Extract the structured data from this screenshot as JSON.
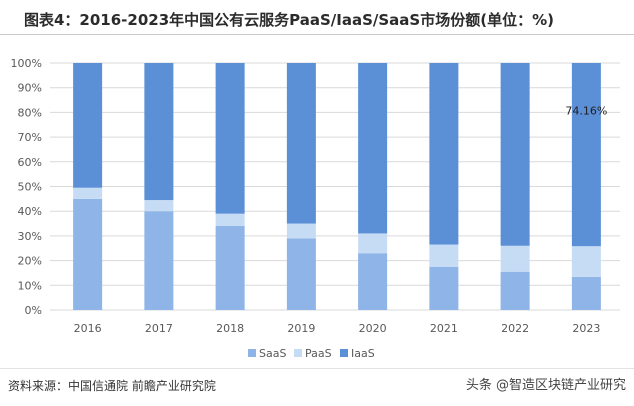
{
  "header": {
    "title": "图表4：2016-2023年中国公有云服务PaaS/IaaS/SaaS市场份额(单位：%)"
  },
  "footer": {
    "source": "资料来源：中国信通院 前瞻产业研究院",
    "watermark": "头条 @智造区块链产业研究"
  },
  "colors": {
    "SaaS": "#8eb4e8",
    "PaaS": "#c6dcf5",
    "IaaS": "#5b8fd6",
    "grid": "#d9d9d9",
    "tick_text": "#595959"
  },
  "chart_data": {
    "type": "bar",
    "stacked": true,
    "categories": [
      "2016",
      "2017",
      "2018",
      "2019",
      "2020",
      "2021",
      "2022",
      "2023"
    ],
    "series": [
      {
        "name": "SaaS",
        "values": [
          45,
          40,
          34,
          29,
          23,
          17.5,
          15.5,
          13.4
        ]
      },
      {
        "name": "PaaS",
        "values": [
          4.5,
          4.5,
          5,
          6,
          8,
          9,
          10.5,
          12.44
        ]
      },
      {
        "name": "IaaS",
        "values": [
          50.5,
          55.5,
          61,
          65,
          69,
          73.5,
          74,
          74.16
        ]
      }
    ],
    "ylim": [
      0,
      100
    ],
    "yticks": [
      "0%",
      "10%",
      "20%",
      "30%",
      "40%",
      "50%",
      "60%",
      "70%",
      "80%",
      "90%",
      "100%"
    ],
    "annotations": [
      {
        "category": "2023",
        "series": "IaaS",
        "text": "74.16%"
      }
    ],
    "legend_position": "bottom",
    "grid": true
  }
}
